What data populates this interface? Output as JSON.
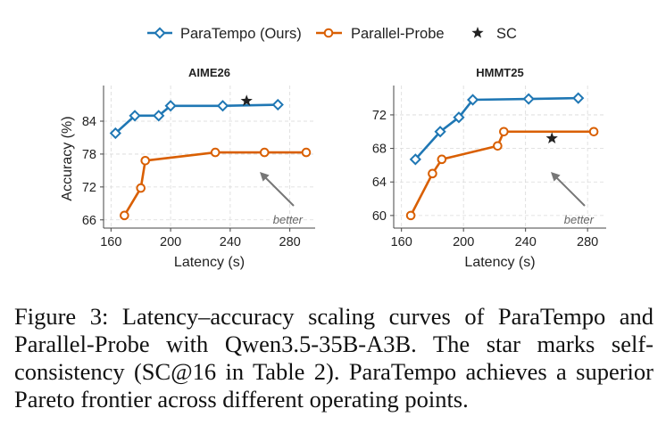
{
  "legend": {
    "items": [
      {
        "label": "ParaTempo (Ours)",
        "color": "#1f77b4",
        "marker": "diamond"
      },
      {
        "label": "Parallel-Probe",
        "color": "#d95f02",
        "marker": "circle"
      },
      {
        "label": "SC",
        "color": "#222222",
        "marker": "star"
      }
    ]
  },
  "chart_data": [
    {
      "type": "line",
      "title": "AIME26",
      "xlabel": "Latency (s)",
      "ylabel": "Accuracy (%)",
      "xlim": [
        155,
        297
      ],
      "ylim": [
        64.5,
        90.5
      ],
      "xticks": [
        160,
        200,
        240,
        280
      ],
      "yticks": [
        66,
        72,
        78,
        84
      ],
      "grid": true,
      "annotation": "better",
      "series": [
        {
          "name": "ParaTempo (Ours)",
          "color": "#1f77b4",
          "marker": "diamond",
          "x": [
            163,
            176,
            192,
            200,
            235,
            272
          ],
          "y": [
            81.8,
            85.0,
            85.0,
            86.8,
            86.8,
            87.0
          ]
        },
        {
          "name": "Parallel-Probe",
          "color": "#d95f02",
          "marker": "circle",
          "x": [
            169,
            180,
            183,
            230,
            263,
            291
          ],
          "y": [
            66.8,
            71.8,
            76.8,
            78.3,
            78.3,
            78.3
          ]
        },
        {
          "name": "SC",
          "color": "#222222",
          "marker": "star",
          "x": [
            251
          ],
          "y": [
            87.7
          ]
        }
      ]
    },
    {
      "type": "line",
      "title": "HMMT25",
      "xlabel": "Latency (s)",
      "ylabel": "",
      "xlim": [
        155,
        292
      ],
      "ylim": [
        58.5,
        75.5
      ],
      "xticks": [
        160,
        200,
        240,
        280
      ],
      "yticks": [
        60,
        64,
        68,
        72
      ],
      "grid": true,
      "annotation": "better",
      "series": [
        {
          "name": "ParaTempo (Ours)",
          "color": "#1f77b4",
          "marker": "diamond",
          "x": [
            169,
            185,
            197,
            206,
            242,
            274
          ],
          "y": [
            66.7,
            70.0,
            71.7,
            73.8,
            73.9,
            74.0
          ]
        },
        {
          "name": "Parallel-Probe",
          "color": "#d95f02",
          "marker": "circle",
          "x": [
            166,
            180,
            186,
            222,
            226,
            284
          ],
          "y": [
            60.0,
            65.0,
            66.7,
            68.3,
            70.0,
            70.0
          ]
        },
        {
          "name": "SC",
          "color": "#222222",
          "marker": "star",
          "x": [
            257
          ],
          "y": [
            69.2
          ]
        }
      ]
    }
  ],
  "caption": "Figure 3: Latency–accuracy scaling curves of ParaTempo and Parallel-Probe with Qwen3.5-35B-A3B. The star marks self-consistency (SC@16 in Table 2). ParaTempo achieves a superior Pareto frontier across different operating points."
}
